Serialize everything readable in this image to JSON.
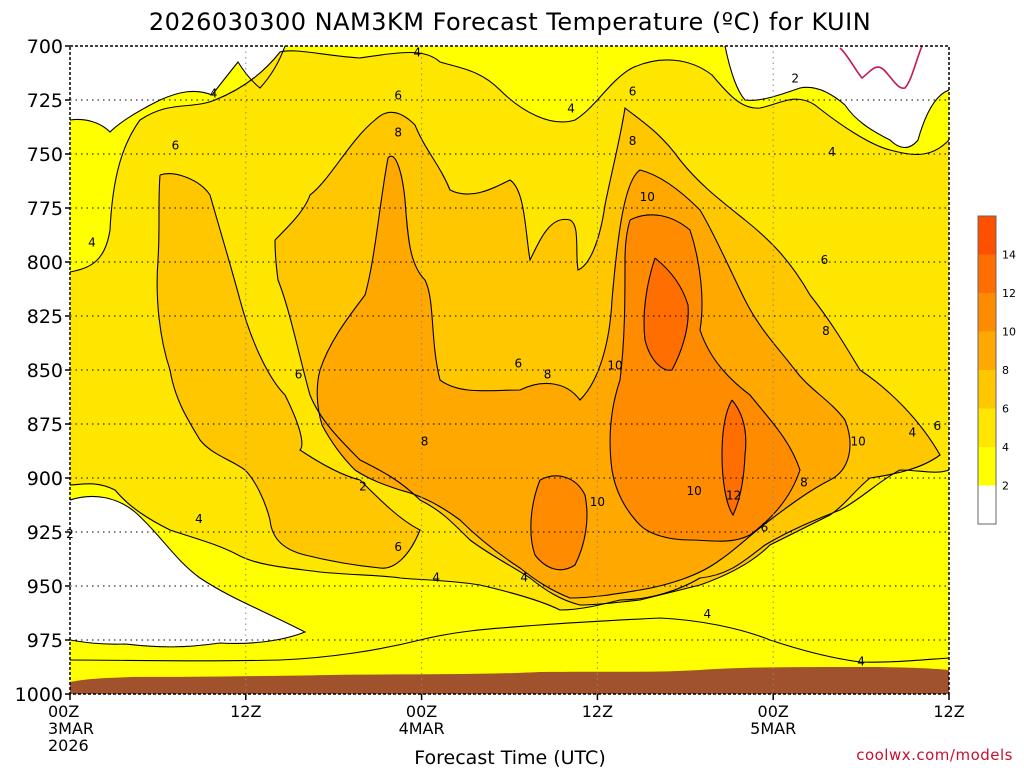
{
  "chart_data": {
    "type": "heatmap",
    "title": "2026030300 NAM3KM Forecast Temperature (ºC) for KUIN",
    "xlabel": "Forecast Time (UTC)",
    "ylabel": "",
    "credit": "coolwx.com/models",
    "x_range_hours": [
      0,
      60
    ],
    "y_range_hpa": [
      700,
      1000
    ],
    "y_ticks": [
      "700",
      "725",
      "750",
      "775",
      "800",
      "825",
      "850",
      "875",
      "900",
      "925",
      "950",
      "975",
      "1000"
    ],
    "x_ticks": [
      {
        "hour": 0,
        "lines": [
          "00Z",
          "3MAR",
          "2026"
        ]
      },
      {
        "hour": 12,
        "lines": [
          "12Z"
        ]
      },
      {
        "hour": 24,
        "lines": [
          "00Z",
          "4MAR"
        ]
      },
      {
        "hour": 36,
        "lines": [
          "12Z"
        ]
      },
      {
        "hour": 48,
        "lines": [
          "00Z",
          "5MAR"
        ]
      },
      {
        "hour": 60,
        "lines": [
          "12Z"
        ]
      }
    ],
    "colorbar": {
      "levels": [
        "2",
        "4",
        "6",
        "8",
        "10",
        "12",
        "14"
      ],
      "colors": [
        "#ffffff",
        "#ffff00",
        "#ffe600",
        "#ffc700",
        "#ffa800",
        "#ff8c00",
        "#ff6e00",
        "#ff5000"
      ]
    },
    "ground_color": "#a0522d",
    "freezing_line_color": "#c2185b",
    "contours": [
      {
        "level": "2",
        "at": [
          0,
          926
        ]
      },
      {
        "level": "2",
        "at": [
          20,
          904
        ]
      },
      {
        "level": "2",
        "at": [
          49.5,
          715
        ]
      },
      {
        "level": "4",
        "at": [
          1.5,
          791
        ]
      },
      {
        "level": "4",
        "at": [
          9.8,
          722
        ]
      },
      {
        "level": "4",
        "at": [
          23.7,
          703
        ]
      },
      {
        "level": "4",
        "at": [
          34.2,
          729
        ]
      },
      {
        "level": "4",
        "at": [
          52,
          749
        ]
      },
      {
        "level": "4",
        "at": [
          8.8,
          919
        ]
      },
      {
        "level": "4",
        "at": [
          25,
          946
        ]
      },
      {
        "level": "4",
        "at": [
          31,
          946
        ]
      },
      {
        "level": "4",
        "at": [
          43.5,
          963
        ]
      },
      {
        "level": "4",
        "at": [
          54,
          985
        ]
      },
      {
        "level": "4",
        "at": [
          57.5,
          879
        ]
      },
      {
        "level": "6",
        "at": [
          7.2,
          746
        ]
      },
      {
        "level": "6",
        "at": [
          15.6,
          852
        ]
      },
      {
        "level": "6",
        "at": [
          22.4,
          723
        ]
      },
      {
        "level": "6",
        "at": [
          30.6,
          847
        ]
      },
      {
        "level": "6",
        "at": [
          38.4,
          721
        ]
      },
      {
        "level": "6",
        "at": [
          51.5,
          799
        ]
      },
      {
        "level": "6",
        "at": [
          59.2,
          876
        ]
      },
      {
        "level": "6",
        "at": [
          22.4,
          932
        ]
      },
      {
        "level": "6",
        "at": [
          47.4,
          923
        ]
      },
      {
        "level": "8",
        "at": [
          22.4,
          740
        ]
      },
      {
        "level": "8",
        "at": [
          38.4,
          744
        ]
      },
      {
        "level": "8",
        "at": [
          32.6,
          852
        ]
      },
      {
        "level": "8",
        "at": [
          51.6,
          832
        ]
      },
      {
        "level": "8",
        "at": [
          24.2,
          883
        ]
      },
      {
        "level": "8",
        "at": [
          50.1,
          902
        ]
      },
      {
        "level": "10",
        "at": [
          39.4,
          770
        ]
      },
      {
        "level": "10",
        "at": [
          37.2,
          848
        ]
      },
      {
        "level": "10",
        "at": [
          36,
          911
        ]
      },
      {
        "level": "10",
        "at": [
          42.6,
          906
        ]
      },
      {
        "level": "10",
        "at": [
          53.8,
          883
        ]
      },
      {
        "level": "12",
        "at": [
          45.3,
          908
        ]
      }
    ]
  }
}
